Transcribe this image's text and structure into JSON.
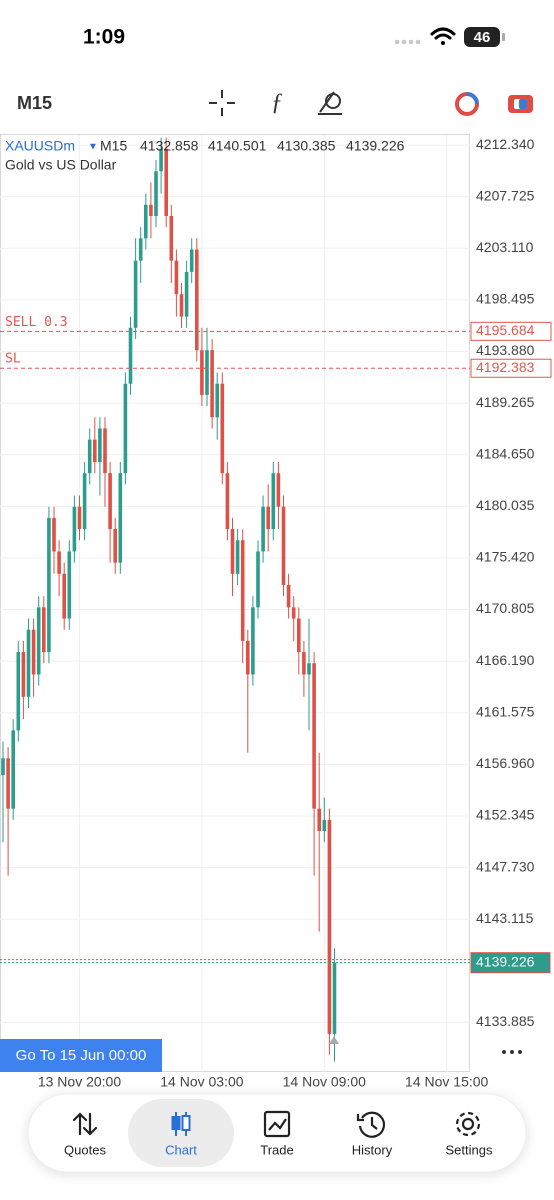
{
  "status_bar": {
    "time": "1:09",
    "battery": "46"
  },
  "toolbar": {
    "timeframe": "M15"
  },
  "go_to_button": "Go To 15 Jun 00:00",
  "nav": {
    "items": [
      "Quotes",
      "Chart",
      "Trade",
      "History",
      "Settings"
    ],
    "active": 1
  },
  "chart_data": {
    "type": "candlestick",
    "symbol": "XAUUSDm",
    "timeframe": "M15",
    "description": "Gold vs US Dollar",
    "up_color": "#2c9d8c",
    "down_color": "#de5146",
    "grid": true,
    "categories": [
      null,
      null,
      null,
      null,
      null,
      null,
      null,
      null,
      null,
      null,
      null,
      null,
      null,
      null,
      null,
      "13 Nov 20:00",
      null,
      null,
      null,
      null,
      null,
      null,
      null,
      null,
      null,
      null,
      null,
      null,
      null,
      null,
      null,
      null,
      null,
      null,
      null,
      null,
      null,
      null,
      null,
      "14 Nov 03:00",
      null,
      null,
      null,
      null,
      null,
      null,
      null,
      null,
      null,
      null,
      null,
      null,
      null,
      null,
      null,
      null,
      null,
      null,
      null,
      null,
      null,
      null,
      null,
      "14 Nov 09:00",
      null,
      null,
      null,
      null,
      null,
      null,
      null,
      null,
      null,
      null,
      null,
      null,
      null,
      null,
      null,
      null,
      null,
      null,
      null,
      null,
      null,
      null,
      null,
      "14 Nov 15:00",
      null,
      null,
      null,
      null
    ],
    "open": [
      4156,
      4157.5,
      4153,
      4160,
      4167,
      4163,
      4169,
      4165,
      4171,
      4167,
      4179,
      4176,
      4174,
      4170,
      4176,
      4180,
      4178,
      4183,
      4186,
      4184,
      4187,
      4183,
      4178,
      4175,
      4183,
      4191,
      4196,
      4202,
      4204,
      4207,
      4206,
      4210,
      4212,
      4206,
      4202,
      4199,
      4197,
      4201,
      4203,
      4194,
      4190,
      4194,
      4188,
      4191,
      4183,
      4178,
      4174,
      4177,
      4168,
      4165,
      4171,
      4176,
      4180,
      4178,
      4183,
      4180,
      4173,
      4171,
      4170,
      4167,
      4165,
      4166,
      4153,
      4151,
      4152,
      4132.858,
      null,
      null,
      null,
      null,
      null,
      null,
      null,
      null,
      null,
      null,
      null,
      null,
      null,
      null,
      null,
      null,
      null,
      null,
      null,
      null,
      null,
      null,
      null,
      null,
      null,
      null
    ],
    "high": [
      4159,
      4158.5,
      4161,
      4168,
      4168,
      4170,
      4170,
      4172,
      4172,
      4180,
      4180,
      4177,
      4175,
      4177,
      4181,
      4181,
      4184,
      4187,
      4188,
      4188,
      4188,
      4184,
      4179,
      4184,
      4192,
      4197,
      4204,
      4205,
      4208,
      4209,
      4211,
      4213,
      4213,
      4207,
      4203,
      4200,
      4202,
      4204,
      4204,
      4196,
      4196,
      4195,
      4192,
      4192,
      4184,
      4179,
      4178,
      4178,
      4169,
      4172,
      4177,
      4181,
      4182,
      4184,
      4184,
      4181,
      4174,
      4172,
      4171,
      4168,
      4170,
      4167,
      4158,
      4154,
      4153,
      4140.501,
      null,
      null,
      null,
      null,
      null,
      null,
      null,
      null,
      null,
      null,
      null,
      null,
      null,
      null,
      null,
      null,
      null,
      null,
      null,
      null,
      null,
      null,
      null,
      null,
      null,
      null
    ],
    "low": [
      4150,
      4147,
      4152,
      4159,
      4161,
      4162,
      4163,
      4164,
      4166,
      4166,
      4174,
      4172,
      4169,
      4169,
      4175,
      4177,
      4177,
      4182,
      4183,
      4181,
      4180,
      4175,
      4174,
      4174,
      4182,
      4190,
      4195,
      4200,
      4203,
      4204,
      4205,
      4208,
      4205,
      4200,
      4197,
      4196,
      4196,
      4200,
      4193,
      4189,
      4189,
      4187,
      4186,
      4182,
      4177,
      4172,
      4173,
      4166,
      4158,
      4164,
      4170,
      4175,
      4176,
      4177,
      4178,
      4172,
      4170,
      4168,
      4165,
      4163,
      4160,
      4147,
      4142,
      4150,
      4131,
      4130.385,
      null,
      null,
      null,
      null,
      null,
      null,
      null,
      null,
      null,
      null,
      null,
      null,
      null,
      null,
      null,
      null,
      null,
      null,
      null,
      null,
      null,
      null,
      null,
      null,
      null,
      null
    ],
    "close": [
      4157.5,
      4153,
      4160,
      4167,
      4163,
      4169,
      4165,
      4171,
      4167,
      4179,
      4176,
      4174,
      4170,
      4176,
      4180,
      4178,
      4183,
      4186,
      4184,
      4187,
      4183,
      4178,
      4175,
      4183,
      4191,
      4196,
      4202,
      4204,
      4207,
      4206,
      4210,
      4212,
      4206,
      4202,
      4199,
      4197,
      4201,
      4203,
      4194,
      4190,
      4194,
      4188,
      4191,
      4183,
      4178,
      4174,
      4177,
      4168,
      4165,
      4171,
      4176,
      4180,
      4178,
      4183,
      4180,
      4173,
      4171,
      4170,
      4167,
      4165,
      4166,
      4153,
      4151,
      4152,
      4132.858,
      4139.226,
      null,
      null,
      null,
      null,
      null,
      null,
      null,
      null,
      null,
      null,
      null,
      null,
      null,
      null,
      null,
      null,
      null,
      null,
      null,
      null,
      null,
      null,
      null,
      null,
      null,
      null
    ],
    "ylim": [
      4129.45,
      4213.24
    ],
    "yticks": [
      {
        "value": 4212.34,
        "label": "4212.340"
      },
      4207.725,
      {
        "value": 4203.11,
        "label": "4203.110"
      },
      4198.495,
      {
        "value": 4193.88,
        "label": "4193.880"
      },
      4189.265,
      {
        "value": 4184.65,
        "label": "4184.650"
      },
      4180.035,
      {
        "value": 4175.42,
        "label": "4175.420"
      },
      4170.805,
      {
        "value": 4166.19,
        "label": "4166.190"
      },
      4161.575,
      {
        "value": 4156.96,
        "label": "4156.960"
      },
      4152.345,
      {
        "value": 4147.73,
        "label": "4147.730"
      },
      4143.115,
      4133.885
    ],
    "lines": [
      {
        "name": "SELL 0.3",
        "value": 4195.684,
        "color": "#e0584e"
      },
      {
        "name": "SL",
        "value": 4192.383,
        "color": "#e0584e"
      }
    ]
  }
}
